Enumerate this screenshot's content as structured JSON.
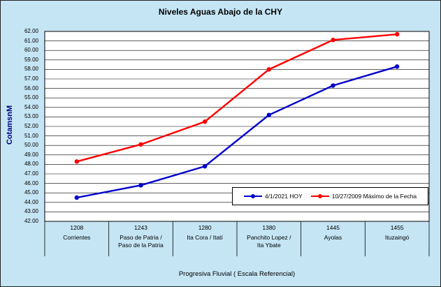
{
  "chart_data": {
    "type": "line",
    "title": "Niveles Aguas Abajo de la CHY",
    "xlabel": "Progresiva Fluvial ( Escala Referencial)",
    "ylabel": "CotamsnM",
    "ylim": [
      42,
      62
    ],
    "ytick_step": 1,
    "grid": true,
    "legend_position": "inside-bottom-right",
    "background_color": "#C5E5F5",
    "plot_background": "#FFFFFF",
    "gridline_color": "#000000",
    "categories": [
      {
        "km": "1208",
        "name": "Corrientes"
      },
      {
        "km": "1243",
        "name": "Paso de Patria /\nPaso de la Patria"
      },
      {
        "km": "1280",
        "name": "Ita Cora / Itatí"
      },
      {
        "km": "1380",
        "name": "Panchito Lopez /\nIta Ybate"
      },
      {
        "km": "1445",
        "name": "Ayolas"
      },
      {
        "km": "1455",
        "name": "Ituzaingó"
      }
    ],
    "series": [
      {
        "name": "4/1/2021 HOY",
        "color": "#0000CC",
        "values": [
          44.5,
          45.8,
          47.8,
          53.2,
          56.3,
          58.3
        ]
      },
      {
        "name": "10/27/2009 Máximo de la Fecha",
        "color": "#FF0000",
        "values": [
          48.3,
          50.1,
          52.5,
          58.0,
          61.1,
          61.7
        ]
      }
    ]
  }
}
